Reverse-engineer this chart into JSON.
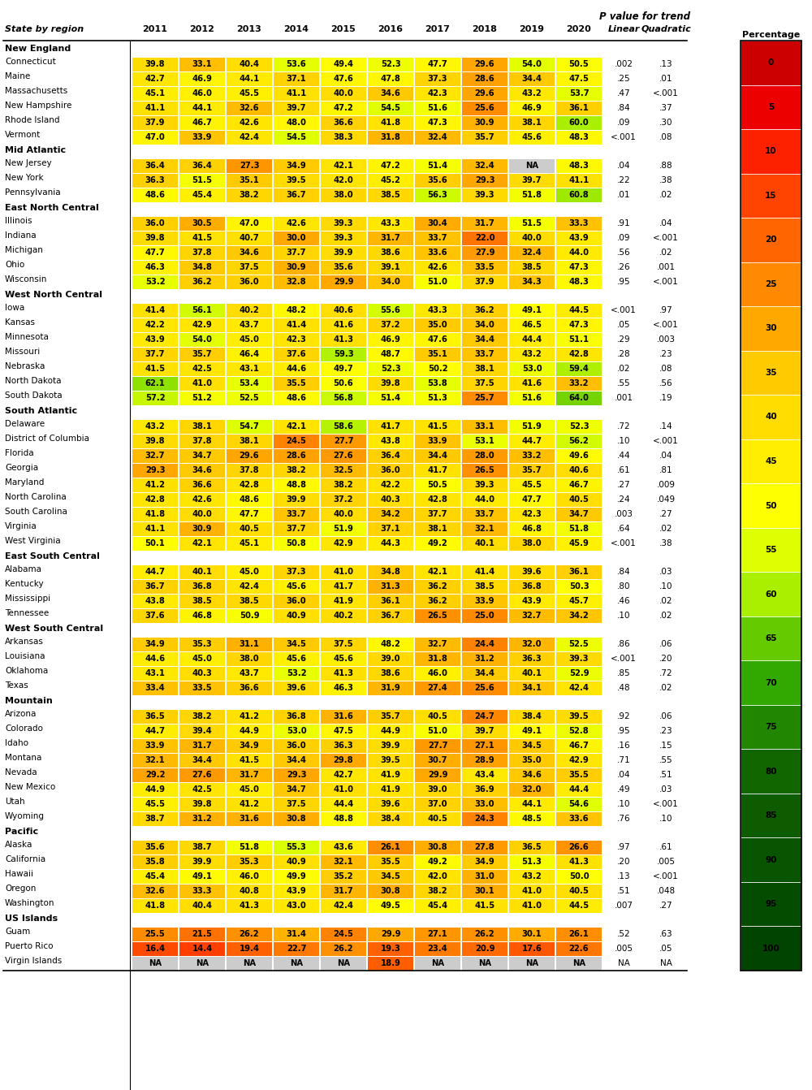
{
  "header": [
    "2011",
    "2012",
    "2013",
    "2014",
    "2015",
    "2016",
    "2017",
    "2018",
    "2019",
    "2020",
    "Linear",
    "Quadratic"
  ],
  "col0_header": "State by region",
  "regions": [
    {
      "name": "New England",
      "is_header": true
    },
    {
      "name": "Connecticut",
      "values": [
        39.8,
        33.1,
        40.4,
        53.6,
        49.4,
        52.3,
        47.7,
        29.6,
        54.0,
        50.5
      ],
      "linear": ".002",
      "quadratic": ".13"
    },
    {
      "name": "Maine",
      "values": [
        42.7,
        46.9,
        44.1,
        37.1,
        47.6,
        47.8,
        37.3,
        28.6,
        34.4,
        47.5
      ],
      "linear": ".25",
      "quadratic": ".01"
    },
    {
      "name": "Massachusetts",
      "values": [
        45.1,
        46.0,
        45.5,
        41.1,
        40.0,
        34.6,
        42.3,
        29.6,
        43.2,
        53.7
      ],
      "linear": ".47",
      "quadratic": "<.001"
    },
    {
      "name": "New Hampshire",
      "values": [
        41.1,
        44.1,
        32.6,
        39.7,
        47.2,
        54.5,
        51.6,
        25.6,
        46.9,
        36.1
      ],
      "linear": ".84",
      "quadratic": ".37"
    },
    {
      "name": "Rhode Island",
      "values": [
        37.9,
        46.7,
        42.6,
        48.0,
        36.6,
        41.8,
        47.3,
        30.9,
        38.1,
        60.0
      ],
      "linear": ".09",
      "quadratic": ".30"
    },
    {
      "name": "Vermont",
      "values": [
        47.0,
        33.9,
        42.4,
        54.5,
        38.3,
        31.8,
        32.4,
        35.7,
        45.6,
        48.3
      ],
      "linear": "<.001",
      "quadratic": ".08"
    },
    {
      "name": "Mid Atlantic",
      "is_header": true
    },
    {
      "name": "New Jersey",
      "values": [
        36.4,
        36.4,
        27.3,
        34.9,
        42.1,
        47.2,
        51.4,
        32.4,
        null,
        48.3
      ],
      "linear": ".04",
      "quadratic": ".88"
    },
    {
      "name": "New York",
      "values": [
        36.3,
        51.5,
        35.1,
        39.5,
        42.0,
        45.2,
        35.6,
        29.3,
        39.7,
        41.1
      ],
      "linear": ".22",
      "quadratic": ".38"
    },
    {
      "name": "Pennsylvania",
      "values": [
        48.6,
        45.4,
        38.2,
        36.7,
        38.0,
        38.5,
        56.3,
        39.3,
        51.8,
        60.8
      ],
      "linear": ".01",
      "quadratic": ".02"
    },
    {
      "name": "East North Central",
      "is_header": true
    },
    {
      "name": "Illinois",
      "values": [
        36.0,
        30.5,
        47.0,
        42.6,
        39.3,
        43.3,
        30.4,
        31.7,
        51.5,
        33.3
      ],
      "linear": ".91",
      "quadratic": ".04"
    },
    {
      "name": "Indiana",
      "values": [
        39.8,
        41.5,
        40.7,
        30.0,
        39.3,
        31.7,
        33.7,
        22.0,
        40.0,
        43.9
      ],
      "linear": ".09",
      "quadratic": "<.001"
    },
    {
      "name": "Michigan",
      "values": [
        47.7,
        37.8,
        34.6,
        37.7,
        39.9,
        38.6,
        33.6,
        27.9,
        32.4,
        44.0
      ],
      "linear": ".56",
      "quadratic": ".02"
    },
    {
      "name": "Ohio",
      "values": [
        46.3,
        34.8,
        37.5,
        30.9,
        35.6,
        39.1,
        42.6,
        33.5,
        38.5,
        47.3
      ],
      "linear": ".26",
      "quadratic": ".001"
    },
    {
      "name": "Wisconsin",
      "values": [
        53.2,
        36.2,
        36.0,
        32.8,
        29.9,
        34.0,
        51.0,
        37.9,
        34.3,
        48.3
      ],
      "linear": ".95",
      "quadratic": "<.001"
    },
    {
      "name": "West North Central",
      "is_header": true
    },
    {
      "name": "Iowa",
      "values": [
        41.4,
        56.1,
        40.2,
        48.2,
        40.6,
        55.6,
        43.3,
        36.2,
        49.1,
        44.5
      ],
      "linear": "<.001",
      "quadratic": ".97"
    },
    {
      "name": "Kansas",
      "values": [
        42.2,
        42.9,
        43.7,
        41.4,
        41.6,
        37.2,
        35.0,
        34.0,
        46.5,
        47.3
      ],
      "linear": ".05",
      "quadratic": "<.001"
    },
    {
      "name": "Minnesota",
      "values": [
        43.9,
        54.0,
        45.0,
        42.3,
        41.3,
        46.9,
        47.6,
        34.4,
        44.4,
        51.1
      ],
      "linear": ".29",
      "quadratic": ".003"
    },
    {
      "name": "Missouri",
      "values": [
        37.7,
        35.7,
        46.4,
        37.6,
        59.3,
        48.7,
        35.1,
        33.7,
        43.2,
        42.8
      ],
      "linear": ".28",
      "quadratic": ".23"
    },
    {
      "name": "Nebraska",
      "values": [
        41.5,
        42.5,
        43.1,
        44.6,
        49.7,
        52.3,
        50.2,
        38.1,
        53.0,
        59.4
      ],
      "linear": ".02",
      "quadratic": ".08"
    },
    {
      "name": "North Dakota",
      "values": [
        62.1,
        41.0,
        53.4,
        35.5,
        50.6,
        39.8,
        53.8,
        37.5,
        41.6,
        33.2
      ],
      "linear": ".55",
      "quadratic": ".56"
    },
    {
      "name": "South Dakota",
      "values": [
        57.2,
        51.2,
        52.5,
        48.6,
        56.8,
        51.4,
        51.3,
        25.7,
        51.6,
        64.0
      ],
      "linear": ".001",
      "quadratic": ".19"
    },
    {
      "name": "South Atlantic",
      "is_header": true
    },
    {
      "name": "Delaware",
      "values": [
        43.2,
        38.1,
        54.7,
        42.1,
        58.6,
        41.7,
        41.5,
        33.1,
        51.9,
        52.3
      ],
      "linear": ".72",
      "quadratic": ".14"
    },
    {
      "name": "District of Columbia",
      "values": [
        39.8,
        37.8,
        38.1,
        24.5,
        27.7,
        43.8,
        33.9,
        53.1,
        44.7,
        56.2
      ],
      "linear": ".10",
      "quadratic": "<.001"
    },
    {
      "name": "Florida",
      "values": [
        32.7,
        34.7,
        29.6,
        28.6,
        27.6,
        36.4,
        34.4,
        28.0,
        33.2,
        49.6
      ],
      "linear": ".44",
      "quadratic": ".04"
    },
    {
      "name": "Georgia",
      "values": [
        29.3,
        34.6,
        37.8,
        38.2,
        32.5,
        36.0,
        41.7,
        26.5,
        35.7,
        40.6
      ],
      "linear": ".61",
      "quadratic": ".81"
    },
    {
      "name": "Maryland",
      "values": [
        41.2,
        36.6,
        42.8,
        48.8,
        38.2,
        42.2,
        50.5,
        39.3,
        45.5,
        46.7
      ],
      "linear": ".27",
      "quadratic": ".009"
    },
    {
      "name": "North Carolina",
      "values": [
        42.8,
        42.6,
        48.6,
        39.9,
        37.2,
        40.3,
        42.8,
        44.0,
        47.7,
        40.5
      ],
      "linear": ".24",
      "quadratic": ".049"
    },
    {
      "name": "South Carolina",
      "values": [
        41.8,
        40.0,
        47.7,
        33.7,
        40.0,
        34.2,
        37.7,
        33.7,
        42.3,
        34.7
      ],
      "linear": ".003",
      "quadratic": ".27"
    },
    {
      "name": "Virginia",
      "values": [
        41.1,
        30.9,
        40.5,
        37.7,
        51.9,
        37.1,
        38.1,
        32.1,
        46.8,
        51.8
      ],
      "linear": ".64",
      "quadratic": ".02"
    },
    {
      "name": "West Virginia",
      "values": [
        50.1,
        42.1,
        45.1,
        50.8,
        42.9,
        44.3,
        49.2,
        40.1,
        38.0,
        45.9
      ],
      "linear": "<.001",
      "quadratic": ".38"
    },
    {
      "name": "East South Central",
      "is_header": true
    },
    {
      "name": "Alabama",
      "values": [
        44.7,
        40.1,
        45.0,
        37.3,
        41.0,
        34.8,
        42.1,
        41.4,
        39.6,
        36.1
      ],
      "linear": ".84",
      "quadratic": ".03"
    },
    {
      "name": "Kentucky",
      "values": [
        36.7,
        36.8,
        42.4,
        45.6,
        41.7,
        31.3,
        36.2,
        38.5,
        36.8,
        50.3
      ],
      "linear": ".80",
      "quadratic": ".10"
    },
    {
      "name": "Mississippi",
      "values": [
        43.8,
        38.5,
        38.5,
        36.0,
        41.9,
        36.1,
        36.2,
        33.9,
        43.9,
        45.7
      ],
      "linear": ".46",
      "quadratic": ".02"
    },
    {
      "name": "Tennessee",
      "values": [
        37.6,
        46.8,
        50.9,
        40.9,
        40.2,
        36.7,
        26.5,
        25.0,
        32.7,
        34.2
      ],
      "linear": ".10",
      "quadratic": ".02"
    },
    {
      "name": "West South Central",
      "is_header": true
    },
    {
      "name": "Arkansas",
      "values": [
        34.9,
        35.3,
        31.1,
        34.5,
        37.5,
        48.2,
        32.7,
        24.4,
        32.0,
        52.5
      ],
      "linear": ".86",
      "quadratic": ".06"
    },
    {
      "name": "Louisiana",
      "values": [
        44.6,
        45.0,
        38.0,
        45.6,
        45.6,
        39.0,
        31.8,
        31.2,
        36.3,
        39.3
      ],
      "linear": "<.001",
      "quadratic": ".20"
    },
    {
      "name": "Oklahoma",
      "values": [
        43.1,
        40.3,
        43.7,
        53.2,
        41.3,
        38.6,
        46.0,
        34.4,
        40.1,
        52.9
      ],
      "linear": ".85",
      "quadratic": ".72"
    },
    {
      "name": "Texas",
      "values": [
        33.4,
        33.5,
        36.6,
        39.6,
        46.3,
        31.9,
        27.4,
        25.6,
        34.1,
        42.4
      ],
      "linear": ".48",
      "quadratic": ".02"
    },
    {
      "name": "Mountain",
      "is_header": true
    },
    {
      "name": "Arizona",
      "values": [
        36.5,
        38.2,
        41.2,
        36.8,
        31.6,
        35.7,
        40.5,
        24.7,
        38.4,
        39.5
      ],
      "linear": ".92",
      "quadratic": ".06"
    },
    {
      "name": "Colorado",
      "values": [
        44.7,
        39.4,
        44.9,
        53.0,
        47.5,
        44.9,
        51.0,
        39.7,
        49.1,
        52.8
      ],
      "linear": ".95",
      "quadratic": ".23"
    },
    {
      "name": "Idaho",
      "values": [
        33.9,
        31.7,
        34.9,
        36.0,
        36.3,
        39.9,
        27.7,
        27.1,
        34.5,
        46.7
      ],
      "linear": ".16",
      "quadratic": ".15"
    },
    {
      "name": "Montana",
      "values": [
        32.1,
        34.4,
        41.5,
        34.4,
        29.8,
        39.5,
        30.7,
        28.9,
        35.0,
        42.9
      ],
      "linear": ".71",
      "quadratic": ".55"
    },
    {
      "name": "Nevada",
      "values": [
        29.2,
        27.6,
        31.7,
        29.3,
        42.7,
        41.9,
        29.9,
        43.4,
        34.6,
        35.5
      ],
      "linear": ".04",
      "quadratic": ".51"
    },
    {
      "name": "New Mexico",
      "values": [
        44.9,
        42.5,
        45.0,
        34.7,
        41.0,
        41.9,
        39.0,
        36.9,
        32.0,
        44.4
      ],
      "linear": ".49",
      "quadratic": ".03"
    },
    {
      "name": "Utah",
      "values": [
        45.5,
        39.8,
        41.2,
        37.5,
        44.4,
        39.6,
        37.0,
        33.0,
        44.1,
        54.6
      ],
      "linear": ".10",
      "quadratic": "<.001"
    },
    {
      "name": "Wyoming",
      "values": [
        38.7,
        31.2,
        31.6,
        30.8,
        48.8,
        38.4,
        40.5,
        24.3,
        48.5,
        33.6
      ],
      "linear": ".76",
      "quadratic": ".10"
    },
    {
      "name": "Pacific",
      "is_header": true
    },
    {
      "name": "Alaska",
      "values": [
        35.6,
        38.7,
        51.8,
        55.3,
        43.6,
        26.1,
        30.8,
        27.8,
        36.5,
        26.6
      ],
      "linear": ".97",
      "quadratic": ".61"
    },
    {
      "name": "California",
      "values": [
        35.8,
        39.9,
        35.3,
        40.9,
        32.1,
        35.5,
        49.2,
        34.9,
        51.3,
        41.3
      ],
      "linear": ".20",
      "quadratic": ".005"
    },
    {
      "name": "Hawaii",
      "values": [
        45.4,
        49.1,
        46.0,
        49.9,
        35.2,
        34.5,
        42.0,
        31.0,
        43.2,
        50.0
      ],
      "linear": ".13",
      "quadratic": "<.001"
    },
    {
      "name": "Oregon",
      "values": [
        32.6,
        33.3,
        40.8,
        43.9,
        31.7,
        30.8,
        38.2,
        30.1,
        41.0,
        40.5
      ],
      "linear": ".51",
      "quadratic": ".048"
    },
    {
      "name": "Washington",
      "values": [
        41.8,
        40.4,
        41.3,
        43.0,
        42.4,
        49.5,
        45.4,
        41.5,
        41.0,
        44.5
      ],
      "linear": ".007",
      "quadratic": ".27"
    },
    {
      "name": "US Islands",
      "is_header": true
    },
    {
      "name": "Guam",
      "values": [
        25.5,
        21.5,
        26.2,
        31.4,
        24.5,
        29.9,
        27.1,
        26.2,
        30.1,
        26.1
      ],
      "linear": ".52",
      "quadratic": ".63"
    },
    {
      "name": "Puerto Rico",
      "values": [
        16.4,
        14.4,
        19.4,
        22.7,
        26.2,
        19.3,
        23.4,
        20.9,
        17.6,
        22.6
      ],
      "linear": ".005",
      "quadratic": ".05"
    },
    {
      "name": "Virgin Islands",
      "values": [
        null,
        null,
        null,
        null,
        null,
        18.9,
        null,
        null,
        null,
        null
      ],
      "linear": "NA",
      "quadratic": "NA"
    }
  ],
  "legend_values": [
    0,
    5,
    10,
    15,
    20,
    25,
    30,
    35,
    40,
    45,
    50,
    55,
    60,
    65,
    70,
    75,
    80,
    85,
    90,
    95,
    100
  ],
  "na_color": "#cccccc",
  "vmin": 0,
  "vmax": 100
}
